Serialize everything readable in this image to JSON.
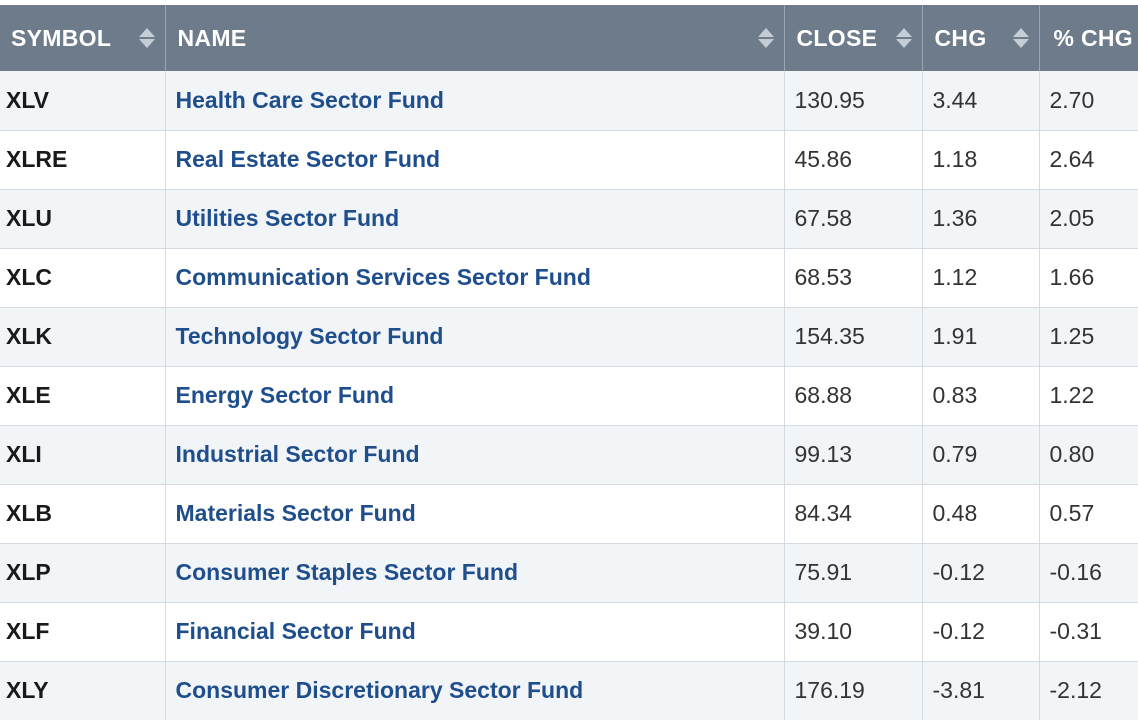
{
  "table": {
    "headers": {
      "symbol": "SYMBOL",
      "name": "NAME",
      "close": "CLOSE",
      "chg": "CHG",
      "pct_chg": "% CHG"
    },
    "rows": [
      {
        "symbol": "XLV",
        "name": "Health Care Sector Fund",
        "close": "130.95",
        "chg": "3.44",
        "pct_chg": "2.70"
      },
      {
        "symbol": "XLRE",
        "name": "Real Estate Sector Fund",
        "close": "45.86",
        "chg": "1.18",
        "pct_chg": "2.64"
      },
      {
        "symbol": "XLU",
        "name": "Utilities Sector Fund",
        "close": "67.58",
        "chg": "1.36",
        "pct_chg": "2.05"
      },
      {
        "symbol": "XLC",
        "name": "Communication Services Sector Fund",
        "close": "68.53",
        "chg": "1.12",
        "pct_chg": "1.66"
      },
      {
        "symbol": "XLK",
        "name": "Technology Sector Fund",
        "close": "154.35",
        "chg": "1.91",
        "pct_chg": "1.25"
      },
      {
        "symbol": "XLE",
        "name": "Energy Sector Fund",
        "close": "68.88",
        "chg": "0.83",
        "pct_chg": "1.22"
      },
      {
        "symbol": "XLI",
        "name": "Industrial Sector Fund",
        "close": "99.13",
        "chg": "0.79",
        "pct_chg": "0.80"
      },
      {
        "symbol": "XLB",
        "name": "Materials Sector Fund",
        "close": "84.34",
        "chg": "0.48",
        "pct_chg": "0.57"
      },
      {
        "symbol": "XLP",
        "name": "Consumer Staples Sector Fund",
        "close": "75.91",
        "chg": "-0.12",
        "pct_chg": "-0.16"
      },
      {
        "symbol": "XLF",
        "name": "Financial Sector Fund",
        "close": "39.10",
        "chg": "-0.12",
        "pct_chg": "-0.31"
      },
      {
        "symbol": "XLY",
        "name": "Consumer Discretionary Sector Fund",
        "close": "176.19",
        "chg": "-3.81",
        "pct_chg": "-2.12"
      }
    ]
  },
  "colors": {
    "header_bg": "#6e7b8b",
    "link": "#1f4e8c",
    "row_alt": "#f2f5f8"
  },
  "icons": {
    "sort": "sort-arrows-icon"
  }
}
